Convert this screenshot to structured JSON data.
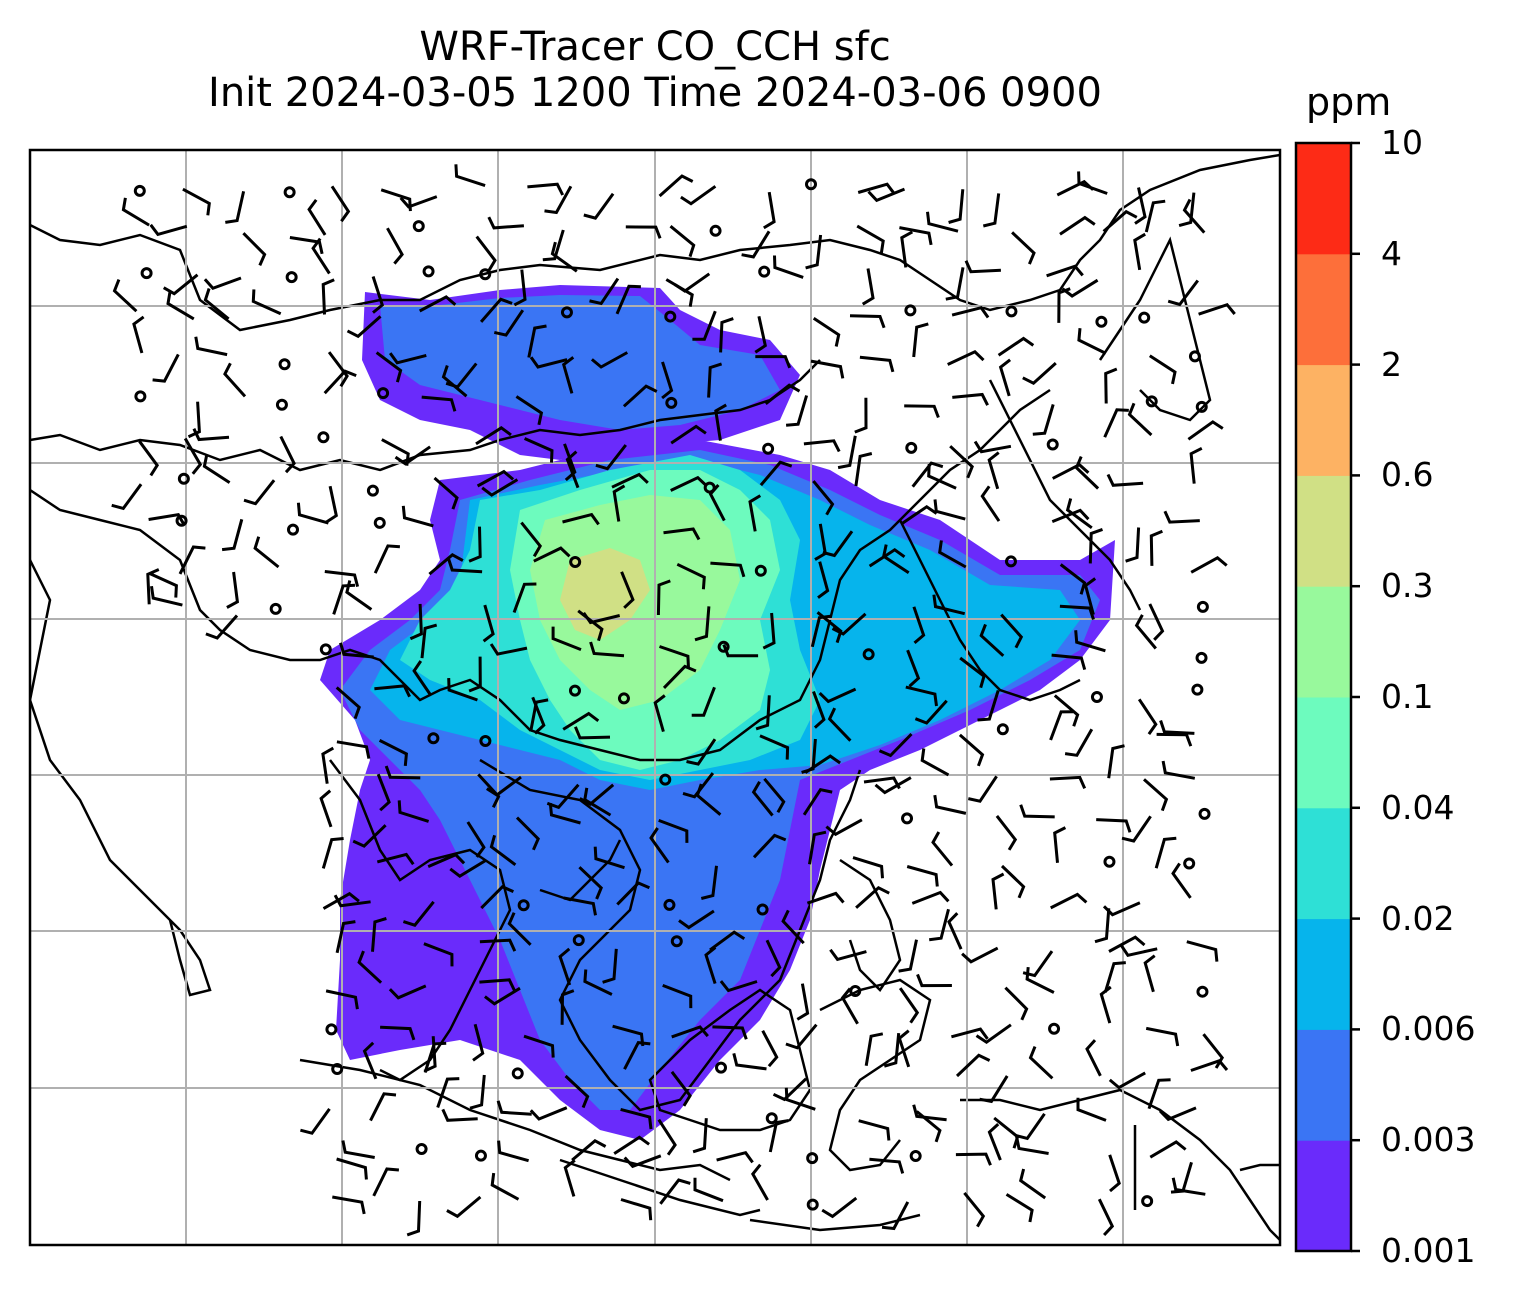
{
  "title": {
    "line1": "WRF-Tracer CO_CCH sfc",
    "line2": "Init 2024-03-05 1200 Time 2024-03-06 0900"
  },
  "colorbar": {
    "unit": "ppm",
    "levels": [
      "0.001",
      "0.003",
      "0.006",
      "0.02",
      "0.04",
      "0.1",
      "0.3",
      "0.6",
      "2",
      "4",
      "10"
    ],
    "colors": [
      "#6a2bfb",
      "#3a75f4",
      "#06b4ec",
      "#2ee0d6",
      "#6dfbbe",
      "#98f99c",
      "#d0e085",
      "#fdb263",
      "#fd6f3a",
      "#fd2b16"
    ]
  },
  "map": {
    "field": "CO_CCH",
    "level": "sfc",
    "gridlines": true
  }
}
